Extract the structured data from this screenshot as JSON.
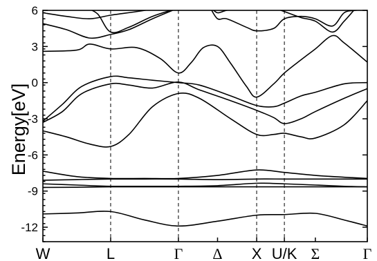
{
  "chart_data": {
    "type": "line",
    "title": "",
    "ylabel": "Energy[eV]",
    "xlabel": "",
    "ylim": [
      -13.2,
      6
    ],
    "yticks": [
      6,
      3,
      0,
      -3,
      -6,
      -9,
      -12
    ],
    "ytick_labels": [
      "6",
      "3",
      "0",
      "-3",
      "-6",
      "-9",
      "-12"
    ],
    "grid": false,
    "legend": "none",
    "kpoints": [
      {
        "label": "W",
        "x": 0.0,
        "greek": false,
        "line": false
      },
      {
        "label": "L",
        "x": 0.866,
        "greek": false,
        "line": true
      },
      {
        "label": "Γ",
        "x": 1.732,
        "greek": true,
        "line": true
      },
      {
        "label": "Δ",
        "x": 2.232,
        "greek": true,
        "line": false
      },
      {
        "label": "X",
        "x": 2.732,
        "greek": false,
        "line": true
      },
      {
        "label": "U/K",
        "x": 3.086,
        "greek": false,
        "line": true
      },
      {
        "label": "Σ",
        "x": 3.482,
        "greek": true,
        "line": false
      },
      {
        "label": "Γ",
        "x": 4.146,
        "greek": true,
        "line": false
      }
    ],
    "series": [
      {
        "x": [
          0,
          0.433,
          0.866,
          1.299,
          1.732,
          2.232,
          2.732,
          3.086,
          3.482,
          3.85,
          4.146
        ],
        "values": [
          -10.9,
          -10.82,
          -10.7,
          -11.4,
          -11.9,
          -11.5,
          -11.0,
          -10.95,
          -10.85,
          -11.4,
          -11.9
        ]
      },
      {
        "x": [
          0,
          0.433,
          0.866,
          1.299,
          1.732,
          2.232,
          2.732,
          3.086,
          3.482,
          3.85,
          4.146
        ],
        "values": [
          -8.7,
          -8.68,
          -8.65,
          -8.65,
          -8.65,
          -8.65,
          -8.65,
          -8.65,
          -8.65,
          -8.65,
          -8.65
        ]
      },
      {
        "x": [
          0,
          0.433,
          0.866,
          1.299,
          1.732,
          2.232,
          2.732,
          3.086,
          3.482,
          3.85,
          4.146
        ],
        "values": [
          -8.4,
          -8.5,
          -8.6,
          -8.6,
          -8.6,
          -8.55,
          -8.35,
          -8.4,
          -8.5,
          -8.6,
          -8.65
        ]
      },
      {
        "x": [
          0,
          0.433,
          0.866,
          1.299,
          1.732,
          2.232,
          2.732,
          3.086,
          3.482,
          3.85,
          4.146
        ],
        "values": [
          -8.1,
          -8.05,
          -8.0,
          -8.0,
          -8.0,
          -8.05,
          -8.0,
          -8.0,
          -8.0,
          -8.0,
          -8.0
        ]
      },
      {
        "x": [
          0,
          0.433,
          0.866,
          1.299,
          1.732,
          2.232,
          2.732,
          3.086,
          3.482,
          3.85,
          4.146
        ],
        "values": [
          -7.35,
          -7.8,
          -7.95,
          -7.95,
          -7.95,
          -7.7,
          -7.25,
          -7.45,
          -7.7,
          -7.85,
          -7.95
        ]
      },
      {
        "x": [
          0,
          0.3,
          0.6,
          0.866,
          1.1,
          1.4,
          1.732,
          2.0,
          2.4,
          2.732,
          2.95,
          3.086,
          3.3,
          3.482,
          3.85,
          4.146
        ],
        "values": [
          -4.0,
          -4.5,
          -5.1,
          -5.3,
          -4.3,
          -2.0,
          -0.9,
          -1.3,
          -3.0,
          -4.3,
          -4.3,
          -4.2,
          -4.5,
          -4.6,
          -3.5,
          -1.5
        ]
      },
      {
        "x": [
          0,
          0.25,
          0.5,
          0.866,
          1.1,
          1.4,
          1.732,
          2.0,
          2.4,
          2.732,
          2.95,
          3.086,
          3.3,
          3.482,
          3.85,
          4.146
        ],
        "values": [
          -3.3,
          -2.4,
          -0.9,
          -0.1,
          -0.2,
          -0.45,
          0.05,
          -0.6,
          -1.5,
          -2.3,
          -2.9,
          -3.4,
          -3.0,
          -2.4,
          -1.3,
          -0.5
        ]
      },
      {
        "x": [
          0,
          0.25,
          0.5,
          0.866,
          1.1,
          1.4,
          1.732,
          2.0,
          2.4,
          2.732,
          2.95,
          3.086,
          3.3,
          3.482,
          3.85,
          4.146
        ],
        "values": [
          -3.2,
          -1.8,
          -0.3,
          0.5,
          0.4,
          0.2,
          0.0,
          -0.2,
          -1.1,
          -1.9,
          -2.0,
          -1.7,
          -1.1,
          -0.8,
          -0.1,
          0.0
        ]
      },
      {
        "x": [
          0,
          0.433,
          0.6,
          0.866,
          1.2,
          1.5,
          1.732,
          1.9,
          2.05,
          2.232,
          2.4,
          2.6,
          2.732,
          2.95,
          3.086,
          3.3,
          3.482,
          3.7,
          3.85,
          4.146
        ],
        "values": [
          2.6,
          2.7,
          3.2,
          2.8,
          2.9,
          2.0,
          0.8,
          1.7,
          2.9,
          3.0,
          1.6,
          -0.3,
          -1.2,
          -0.1,
          0.8,
          1.9,
          2.8,
          3.9,
          3.3,
          1.7
        ]
      },
      {
        "x": [
          0,
          0.3,
          0.6,
          0.866,
          1.1,
          1.4,
          1.732
        ],
        "values": [
          4.9,
          4.4,
          3.7,
          4.0,
          4.4,
          5.3,
          6.2
        ]
      },
      {
        "x": [
          0.55,
          0.7,
          0.866,
          1.1,
          1.4,
          1.732
        ],
        "values": [
          6.2,
          5.7,
          4.2,
          4.6,
          5.5,
          6.2
        ]
      },
      {
        "x": [
          0,
          0.3,
          0.6,
          0.866,
          1.2,
          1.5
        ],
        "values": [
          5.8,
          5.5,
          5.3,
          5.6,
          5.9,
          6.2
        ]
      },
      {
        "x": [
          2.14,
          2.232,
          2.35,
          2.6,
          2.732,
          2.95,
          3.086,
          3.3,
          3.482,
          3.7,
          3.85,
          4.0,
          4.146
        ],
        "values": [
          6.2,
          5.3,
          5.3,
          4.6,
          4.3,
          4.5,
          5.3,
          5.5,
          5.3,
          4.7,
          5.8,
          6.0,
          6.1
        ]
      },
      {
        "x": [
          2.15,
          2.232,
          2.35,
          2.55
        ],
        "values": [
          6.2,
          5.8,
          6.0,
          6.2
        ]
      },
      {
        "x": [
          2.95,
          3.086,
          3.3,
          3.482,
          3.7,
          3.85,
          4.0
        ],
        "values": [
          6.2,
          5.9,
          5.4,
          5.1,
          4.2,
          5.1,
          6.2
        ]
      }
    ]
  }
}
